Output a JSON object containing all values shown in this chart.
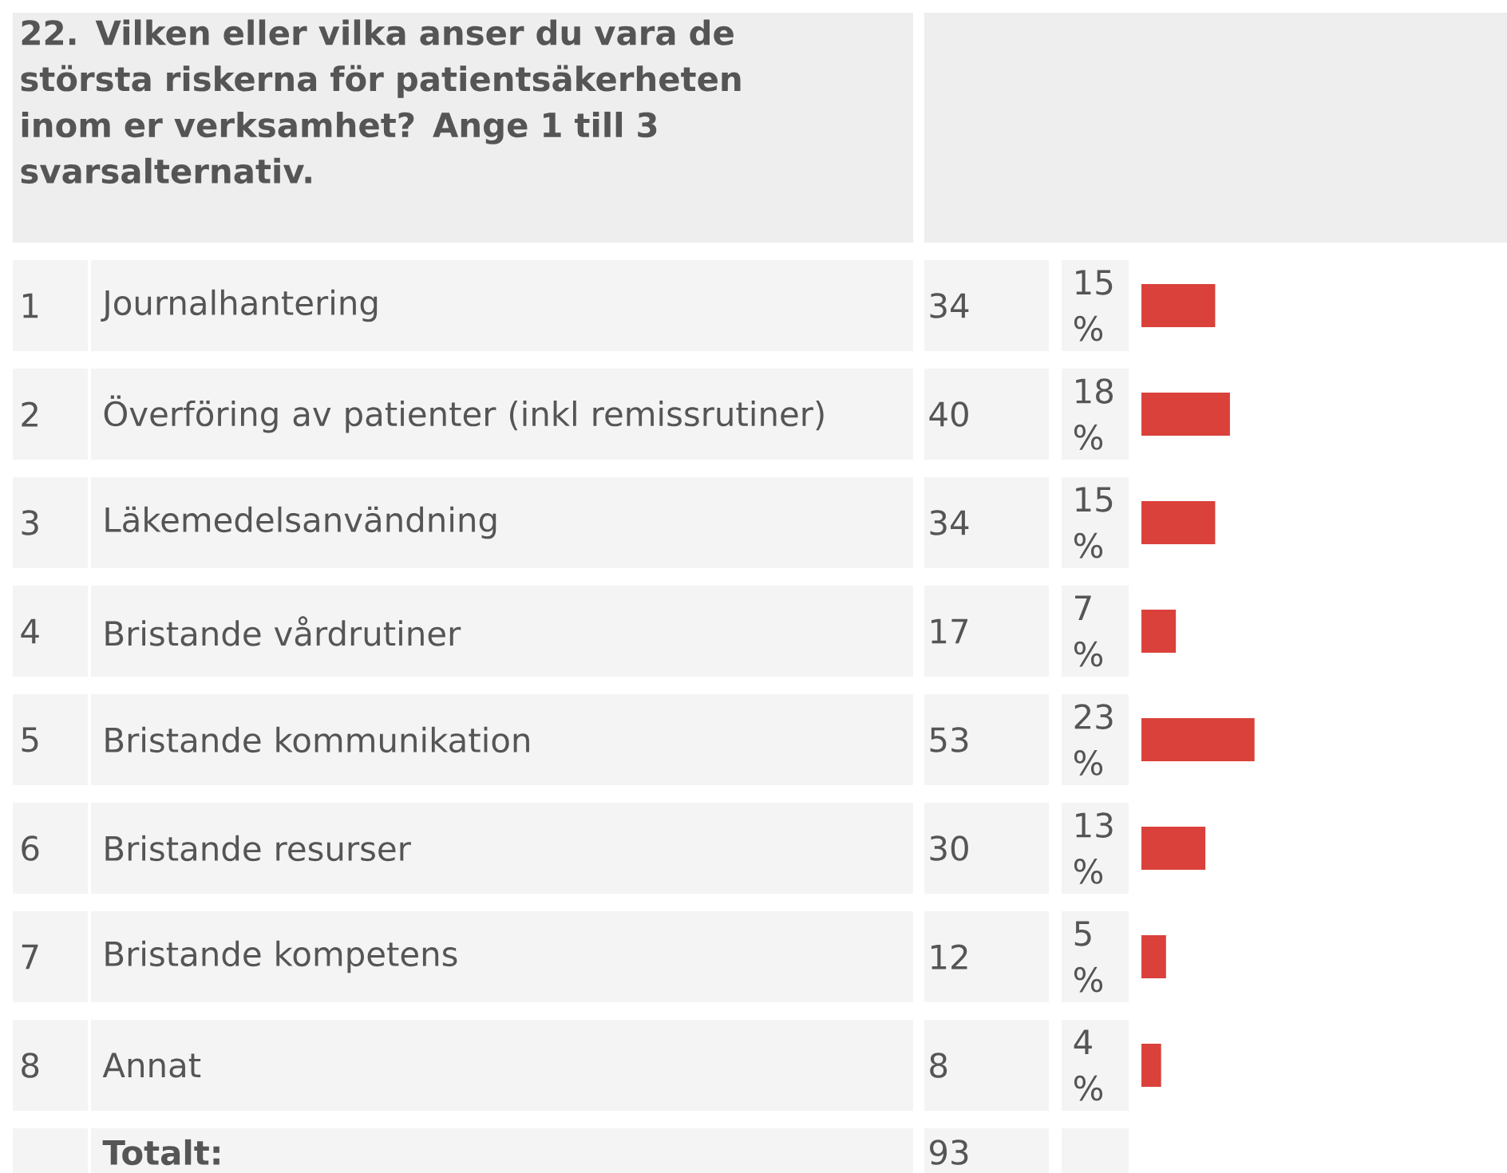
{
  "chart_data": {
    "type": "bar",
    "orientation": "horizontal",
    "title": "22. Vilken eller vilka anser du vara de största riskerna för patientsäkerheten inom er verksamhet? Ange 1 till 3 svarsalternativ.",
    "categories": [
      "Journalhantering",
      "Överföring av patienter (inkl remissrutiner)",
      "Läkemedelsanvändning",
      "Bristande vårdrutiner",
      "Bristande kommunikation",
      "Bristande resurser",
      "Bristande kompetens",
      "Annat"
    ],
    "values": [
      15,
      18,
      15,
      7,
      23,
      13,
      5,
      4
    ],
    "value_labels": [
      "15 %",
      "18 %",
      "15 %",
      "7 %",
      "23 %",
      "13 %",
      "5 %",
      "4 %"
    ],
    "color": "#d9413a",
    "annotations": [
      "1",
      "34",
      "2",
      "40",
      "3",
      "34",
      "4",
      "17",
      "5",
      "53",
      "6",
      "30",
      "7",
      "12",
      "8",
      "8",
      "Totalt:",
      "93"
    ]
  }
}
